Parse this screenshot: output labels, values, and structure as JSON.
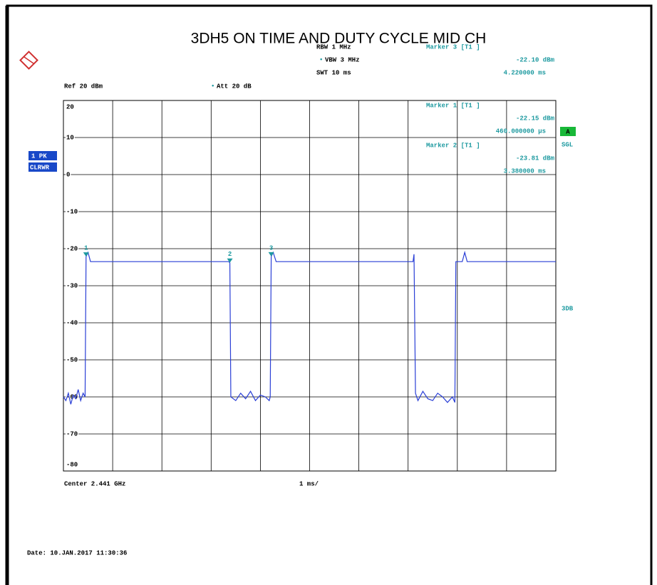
{
  "chart_data": {
    "type": "line",
    "title": "3DH5 ON TIME AND DUTY CYCLE MID CH",
    "header": {
      "rbw": "RBW 1 MHz",
      "vbw": "VBW 3 MHz",
      "swt": "SWT 10 ms",
      "ref": "Ref 20 dBm",
      "att": "Att 20 dB"
    },
    "marker_readouts": [
      {
        "title": "Marker 3 [T1 ]",
        "level": "-22.10 dBm",
        "time": "4.220000 ms"
      },
      {
        "title": "Marker 1 [T1 ]",
        "level": "-22.15 dBm",
        "time": "460.000000 µs"
      },
      {
        "title": "Marker 2 [T1 ]",
        "level": "-23.81 dBm",
        "time": "3.380000 ms"
      }
    ],
    "side_labels": {
      "trace": "1 PK",
      "mode": "CLRWR",
      "status": "A",
      "sgl": "SGL",
      "bw": "3DB"
    },
    "footer": {
      "center": "Center 2.441 GHz",
      "span": "1 ms/",
      "date": "Date: 10.JAN.2017 11:30:36"
    },
    "series": [
      {
        "name": "1 PK",
        "color": "#2a3fd6",
        "x": [
          0,
          0.05,
          0.1,
          0.15,
          0.2,
          0.25,
          0.3,
          0.35,
          0.4,
          0.44,
          0.46,
          0.5,
          0.55,
          3.36,
          3.38,
          3.4,
          3.5,
          3.6,
          3.7,
          3.8,
          3.9,
          4.0,
          4.1,
          4.18,
          4.2,
          4.22,
          4.26,
          4.32,
          7.1,
          7.12,
          7.15,
          7.2,
          7.3,
          7.4,
          7.5,
          7.6,
          7.7,
          7.8,
          7.9,
          7.95,
          7.97,
          8.1,
          8.15,
          8.2,
          10
        ],
        "values": [
          -60,
          -61,
          -59,
          -62,
          -59.5,
          -60.5,
          -58,
          -61,
          -59,
          -60,
          -22.15,
          -21,
          -23.5,
          -23.5,
          -23.81,
          -60,
          -61,
          -59,
          -60.5,
          -58.5,
          -61,
          -59.5,
          -60,
          -61,
          -60,
          -22.1,
          -21,
          -23.5,
          -23.5,
          -21.5,
          -59,
          -61,
          -58.5,
          -60.5,
          -61,
          -59,
          -60,
          -61.5,
          -60,
          -61.5,
          -23.5,
          -23.5,
          -21,
          -23.5,
          -23.5
        ]
      }
    ],
    "markers": [
      {
        "label": "1",
        "x": 0.46,
        "value": -22.15
      },
      {
        "label": "2",
        "x": 3.38,
        "value": -23.81
      },
      {
        "label": "3",
        "x": 4.22,
        "value": -22.1
      }
    ],
    "xlim": [
      0,
      10
    ],
    "xticks": [
      0,
      1,
      2,
      3,
      4,
      5,
      6,
      7,
      8,
      9,
      10
    ],
    "ylim": [
      -80,
      20
    ],
    "yticks": [
      20,
      10,
      0,
      -10,
      -20,
      -30,
      -40,
      -50,
      -60,
      -70,
      -80
    ],
    "grid": true
  }
}
